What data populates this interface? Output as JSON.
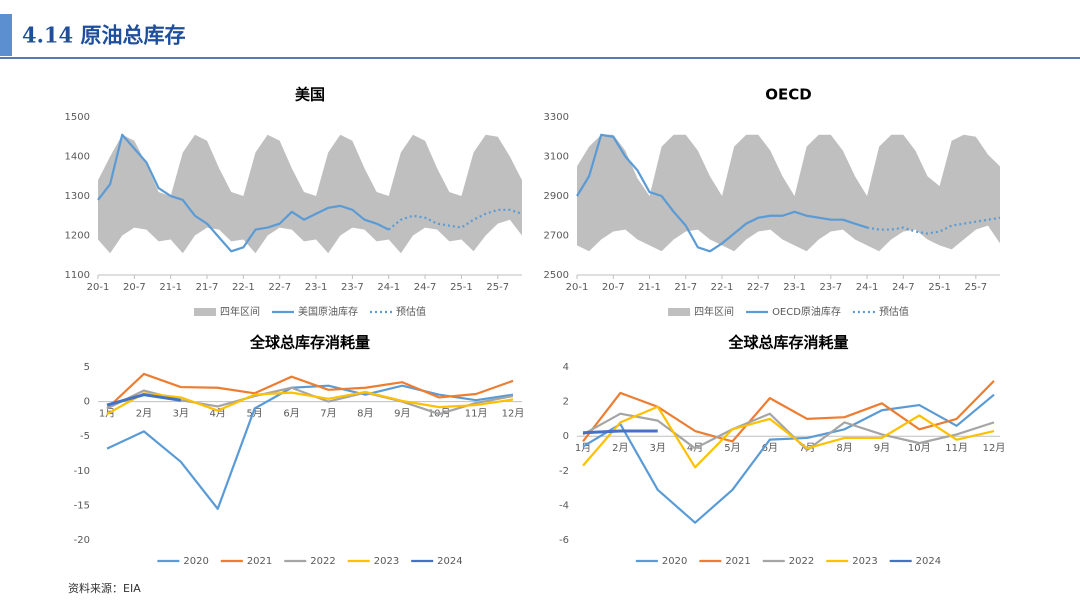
{
  "header": {
    "title": "4.14 原油总库存"
  },
  "source": "资料来源：EIA",
  "chart_data": [
    {
      "type": "line",
      "title": "美国",
      "legend": "bottom",
      "grid": false,
      "categories": [
        "20-1",
        null,
        null,
        "20-7",
        null,
        null,
        "21-1",
        null,
        null,
        "21-7",
        null,
        null,
        "22-1",
        null,
        null,
        "22-7",
        null,
        null,
        "23-1",
        null,
        null,
        "23-7",
        null,
        null,
        "24-1",
        null,
        null,
        "24-7",
        null,
        null,
        "25-1",
        null,
        null,
        "25-7",
        null,
        null
      ],
      "ylim": [
        1100,
        1500
      ],
      "yticks": [
        1100,
        1200,
        1300,
        1400,
        1500
      ],
      "series": [
        {
          "name": "四年区间",
          "color": "#bfbfbf",
          "high": [
            1340,
            1400,
            1455,
            1440,
            1380,
            1310,
            1300,
            1410,
            1455,
            1440,
            1370,
            1310,
            1300,
            1410,
            1455,
            1440,
            1370,
            1310,
            1300,
            1410,
            1455,
            1440,
            1370,
            1310,
            1300,
            1410,
            1455,
            1440,
            1370,
            1310,
            1300,
            1410,
            1455,
            1450,
            1400,
            1340
          ],
          "low": [
            1190,
            1155,
            1200,
            1220,
            1215,
            1185,
            1190,
            1155,
            1200,
            1220,
            1215,
            1185,
            1190,
            1155,
            1200,
            1220,
            1215,
            1185,
            1190,
            1155,
            1200,
            1220,
            1215,
            1185,
            1190,
            1155,
            1200,
            1220,
            1215,
            1185,
            1190,
            1160,
            1200,
            1230,
            1240,
            1200
          ]
        },
        {
          "name": "美国原油库存",
          "color": "#5b9bd5",
          "values": [
            1290,
            1330,
            1455,
            1420,
            1385,
            1320,
            1300,
            1290,
            1250,
            1230,
            1195,
            1160,
            1170,
            1215,
            1220,
            1230,
            1260,
            1240,
            1255,
            1270,
            1275,
            1265,
            1240,
            1230,
            1215,
            null,
            null,
            null,
            null,
            null,
            null,
            null,
            null,
            null,
            null,
            null
          ]
        },
        {
          "name": "预估值",
          "color": "#5b9bd5",
          "dash": true,
          "values": [
            null,
            null,
            null,
            null,
            null,
            null,
            null,
            null,
            null,
            null,
            null,
            null,
            null,
            null,
            null,
            null,
            null,
            null,
            null,
            null,
            null,
            null,
            null,
            null,
            1215,
            1240,
            1250,
            1245,
            1230,
            1225,
            1220,
            1240,
            1255,
            1265,
            1265,
            1255
          ]
        }
      ]
    },
    {
      "type": "line",
      "title": "OECD",
      "legend": "bottom",
      "grid": false,
      "categories": [
        "20-1",
        null,
        null,
        "20-7",
        null,
        null,
        "21-1",
        null,
        null,
        "21-7",
        null,
        null,
        "22-1",
        null,
        null,
        "22-7",
        null,
        null,
        "23-1",
        null,
        null,
        "23-7",
        null,
        null,
        "24-1",
        null,
        null,
        "24-7",
        null,
        null,
        "25-1",
        null,
        null,
        "25-7",
        null,
        null
      ],
      "ylim": [
        2500,
        3300
      ],
      "yticks": [
        2500,
        2700,
        2900,
        3100,
        3300
      ],
      "series": [
        {
          "name": "四年区间",
          "color": "#bfbfbf",
          "high": [
            3050,
            3150,
            3210,
            3210,
            3130,
            2990,
            2900,
            3150,
            3210,
            3210,
            3130,
            3000,
            2900,
            3150,
            3210,
            3210,
            3130,
            3000,
            2900,
            3150,
            3210,
            3210,
            3130,
            3000,
            2900,
            3150,
            3210,
            3210,
            3130,
            3000,
            2950,
            3180,
            3210,
            3200,
            3110,
            3050
          ],
          "low": [
            2650,
            2620,
            2680,
            2720,
            2730,
            2680,
            2650,
            2620,
            2680,
            2720,
            2730,
            2680,
            2650,
            2620,
            2680,
            2720,
            2730,
            2680,
            2650,
            2620,
            2680,
            2720,
            2730,
            2680,
            2650,
            2620,
            2680,
            2720,
            2730,
            2680,
            2650,
            2630,
            2680,
            2730,
            2750,
            2660
          ]
        },
        {
          "name": "OECD原油库存",
          "color": "#5b9bd5",
          "values": [
            2900,
            3000,
            3210,
            3200,
            3100,
            3030,
            2920,
            2900,
            2820,
            2750,
            2640,
            2620,
            2660,
            2710,
            2760,
            2790,
            2800,
            2800,
            2820,
            2800,
            2790,
            2780,
            2780,
            2760,
            2740,
            null,
            null,
            null,
            null,
            null,
            null,
            null,
            null,
            null,
            null,
            null
          ]
        },
        {
          "name": "预估值",
          "color": "#5b9bd5",
          "dash": true,
          "values": [
            null,
            null,
            null,
            null,
            null,
            null,
            null,
            null,
            null,
            null,
            null,
            null,
            null,
            null,
            null,
            null,
            null,
            null,
            null,
            null,
            null,
            null,
            null,
            null,
            2740,
            2730,
            2730,
            2740,
            2720,
            2710,
            2720,
            2750,
            2760,
            2770,
            2780,
            2790
          ]
        }
      ]
    },
    {
      "type": "line",
      "title": "全球总库存消耗量",
      "legend": "bottom",
      "grid": false,
      "categories": [
        "1月",
        "2月",
        "3月",
        "4月",
        "5月",
        "6月",
        "7月",
        "8月",
        "9月",
        "10月",
        "11月",
        "12月"
      ],
      "ylim": [
        -20,
        5
      ],
      "yticks": [
        -20,
        -15,
        -10,
        -5,
        0,
        5
      ],
      "series": [
        {
          "name": "2020",
          "color": "#5b9bd5",
          "values": [
            -6.8,
            -4.3,
            -8.7,
            -15.5,
            -1,
            2,
            2.3,
            1,
            2.3,
            1,
            0.2,
            1
          ]
        },
        {
          "name": "2021",
          "color": "#ed7d31",
          "values": [
            -1,
            4,
            2.1,
            2,
            1.2,
            3.6,
            1.7,
            2,
            2.8,
            0.6,
            1.1,
            3
          ]
        },
        {
          "name": "2022",
          "color": "#a5a5a5",
          "values": [
            -1,
            1.6,
            0.2,
            -0.7,
            0.8,
            2,
            0,
            1.3,
            0,
            -1.8,
            -0.2,
            0.8
          ]
        },
        {
          "name": "2023",
          "color": "#ffc000",
          "values": [
            -1.8,
            1.2,
            0.6,
            -1.3,
            1,
            1.3,
            0.4,
            1.4,
            0.1,
            -0.8,
            -0.5,
            0.3
          ]
        },
        {
          "name": "2024",
          "color": "#4472c4",
          "values": [
            -0.5,
            1,
            0.2,
            null,
            null,
            null,
            null,
            null,
            null,
            null,
            null,
            null
          ]
        }
      ]
    },
    {
      "type": "line",
      "title": "全球总库存消耗量",
      "legend": "bottom",
      "grid": false,
      "categories": [
        "1月",
        "2月",
        "3月",
        "4月",
        "5月",
        "6月",
        "7月",
        "8月",
        "9月",
        "10月",
        "11月",
        "12月"
      ],
      "ylim": [
        -6,
        4
      ],
      "yticks": [
        -6,
        -4,
        -2,
        0,
        2,
        4
      ],
      "series": [
        {
          "name": "2020",
          "color": "#5b9bd5",
          "values": [
            -0.6,
            0.7,
            -3.1,
            -5,
            -3.1,
            -0.2,
            -0.1,
            0.4,
            1.5,
            1.8,
            0.6,
            2.4
          ]
        },
        {
          "name": "2021",
          "color": "#ed7d31",
          "values": [
            -0.3,
            2.5,
            1.7,
            0.3,
            -0.3,
            2.2,
            1,
            1.1,
            1.9,
            0.4,
            1,
            3.2
          ]
        },
        {
          "name": "2022",
          "color": "#a5a5a5",
          "values": [
            0.1,
            1.3,
            0.9,
            -0.7,
            0.4,
            1.3,
            -0.8,
            0.8,
            0.1,
            -0.4,
            0.1,
            0.8
          ]
        },
        {
          "name": "2023",
          "color": "#ffc000",
          "values": [
            -1.7,
            0.8,
            1.7,
            -1.8,
            0.4,
            1,
            -0.7,
            -0.1,
            -0.1,
            1.2,
            -0.2,
            0.3
          ]
        },
        {
          "name": "2024",
          "color": "#4472c4",
          "values": [
            0.2,
            0.3,
            0.3,
            null,
            null,
            null,
            null,
            null,
            null,
            null,
            null,
            null
          ]
        }
      ]
    }
  ]
}
